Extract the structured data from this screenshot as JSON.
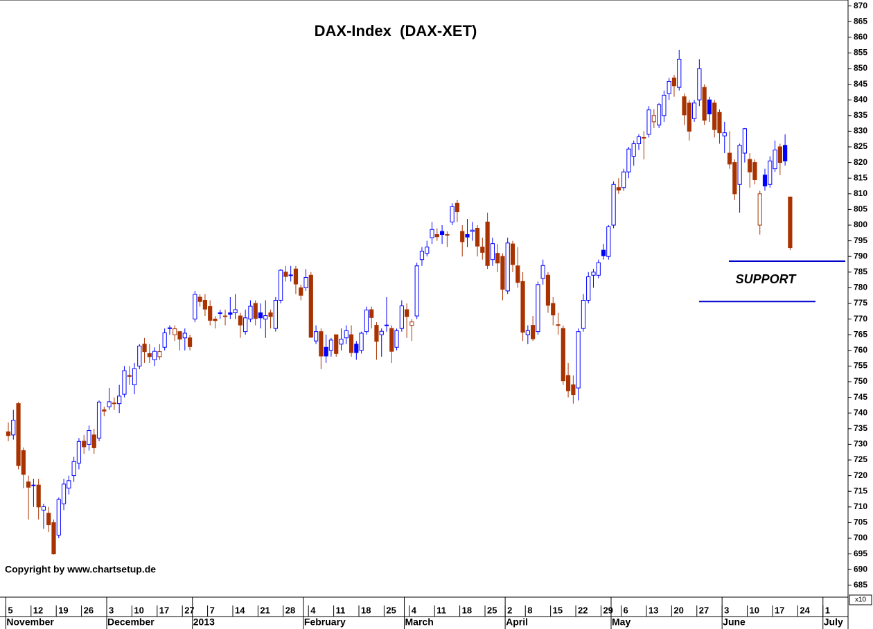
{
  "chart_data": {
    "type": "candlestick",
    "title": "DAX-Index  (DAX-XET)",
    "copyright": "Copyright by www.chartsetup.de",
    "up_color": "#0000ff",
    "down_color": "#a83200",
    "ylim": [
      681.2,
      871.9
    ],
    "yticks": [
      685,
      690,
      695,
      700,
      705,
      710,
      715,
      720,
      725,
      730,
      735,
      740,
      745,
      750,
      755,
      760,
      765,
      770,
      775,
      780,
      785,
      790,
      795,
      800,
      805,
      810,
      815,
      820,
      825,
      830,
      835,
      840,
      845,
      850,
      855,
      860,
      865,
      870
    ],
    "y_unit_label": "x10",
    "xticks": [
      {
        "value": 0,
        "label": "5"
      },
      {
        "value": 5,
        "label": "12"
      },
      {
        "value": 10,
        "label": "19"
      },
      {
        "value": 15,
        "label": "26"
      },
      {
        "value": 20,
        "label": "3"
      },
      {
        "value": 25,
        "label": "10"
      },
      {
        "value": 30,
        "label": "17"
      },
      {
        "value": 35,
        "label": "27"
      },
      {
        "value": 40,
        "label": "7"
      },
      {
        "value": 45,
        "label": "14"
      },
      {
        "value": 50,
        "label": "21"
      },
      {
        "value": 55,
        "label": "28"
      },
      {
        "value": 60,
        "label": "4"
      },
      {
        "value": 65,
        "label": "11"
      },
      {
        "value": 70,
        "label": "18"
      },
      {
        "value": 75,
        "label": "25"
      },
      {
        "value": 80,
        "label": "4"
      },
      {
        "value": 85,
        "label": "11"
      },
      {
        "value": 90,
        "label": "18"
      },
      {
        "value": 95,
        "label": "25"
      },
      {
        "value": 99,
        "label": "2"
      },
      {
        "value": 103,
        "label": "8"
      },
      {
        "value": 108,
        "label": "15"
      },
      {
        "value": 113,
        "label": "22"
      },
      {
        "value": 118,
        "label": "29"
      },
      {
        "value": 122,
        "label": "6"
      },
      {
        "value": 127,
        "label": "13"
      },
      {
        "value": 132,
        "label": "20"
      },
      {
        "value": 137,
        "label": "27"
      },
      {
        "value": 142,
        "label": "3"
      },
      {
        "value": 147,
        "label": "10"
      },
      {
        "value": 152,
        "label": "17"
      },
      {
        "value": 157,
        "label": "24"
      },
      {
        "value": 162,
        "label": "1"
      }
    ],
    "month_labels": [
      {
        "value": 0,
        "label": "November"
      },
      {
        "value": 20,
        "label": "December"
      },
      {
        "value": 37,
        "label": "2013"
      },
      {
        "value": 59,
        "label": "February"
      },
      {
        "value": 79,
        "label": "March"
      },
      {
        "value": 99,
        "label": "April"
      },
      {
        "value": 120,
        "label": "May"
      },
      {
        "value": 142,
        "label": "June"
      },
      {
        "value": 162,
        "label": "July"
      }
    ],
    "support_lines": [
      788.5,
      775.6
    ],
    "annotation": "SUPPORT",
    "ohlc": [
      [
        734,
        737,
        731,
        732.8
      ],
      [
        733,
        741,
        731.5,
        737.7
      ],
      [
        743,
        743.5,
        722,
        723.2
      ],
      [
        728,
        729,
        716,
        720.4
      ],
      [
        718,
        720,
        706,
        716.3
      ],
      [
        717,
        719,
        710,
        716.9
      ],
      [
        717,
        719,
        706,
        710
      ],
      [
        709,
        711,
        703,
        710.1
      ],
      [
        708,
        710,
        702,
        704.3
      ],
      [
        705,
        706,
        694.8,
        695
      ],
      [
        701,
        713,
        700,
        712.4
      ],
      [
        711,
        719,
        709,
        717.3
      ],
      [
        716,
        720,
        714,
        718.4
      ],
      [
        720,
        726,
        718,
        724.5
      ],
      [
        724,
        732,
        722,
        730.9
      ],
      [
        731,
        733,
        727,
        729.2
      ],
      [
        730,
        736,
        728,
        734.4
      ],
      [
        733,
        735,
        727,
        728.9
      ],
      [
        732,
        744,
        731,
        743.5
      ],
      [
        741,
        742,
        739,
        740.6
      ],
      [
        742,
        748,
        741,
        743.6
      ],
      [
        743,
        745,
        741,
        743.2
      ],
      [
        743,
        749,
        740,
        745.4
      ],
      [
        746,
        755,
        745,
        753.5
      ],
      [
        752,
        755,
        749,
        751.7
      ],
      [
        749,
        756,
        746,
        754.2
      ],
      [
        755,
        762,
        754,
        761.4
      ],
      [
        762,
        764,
        756,
        759.6
      ],
      [
        759,
        762,
        756,
        758
      ],
      [
        757,
        761,
        755,
        759.7
      ],
      [
        758,
        762,
        757,
        759.6
      ],
      [
        761,
        767,
        760,
        765.6
      ],
      [
        767,
        768,
        765,
        767.2
      ],
      [
        765,
        768,
        763,
        766.9
      ],
      [
        766,
        766,
        760,
        763.6
      ],
      [
        764,
        767,
        760,
        765.5
      ],
      [
        764,
        765,
        760,
        761.2
      ],
      [
        770,
        779,
        769,
        777.9
      ],
      [
        777,
        778,
        774,
        775.6
      ],
      [
        776,
        778,
        771,
        773.2
      ],
      [
        774,
        776,
        768,
        769.6
      ],
      [
        770,
        771,
        767,
        769.5
      ],
      [
        772,
        773,
        770,
        772
      ],
      [
        771,
        773,
        768,
        770.8
      ],
      [
        772,
        777,
        770,
        771.5
      ],
      [
        772,
        778,
        770,
        773
      ],
      [
        771,
        772,
        764,
        768.1
      ],
      [
        766,
        773,
        765,
        770.4
      ],
      [
        770,
        776,
        769,
        774.1
      ],
      [
        775,
        776,
        768,
        770.2
      ],
      [
        772,
        775,
        767,
        770.4
      ],
      [
        770,
        776,
        764,
        771.1
      ],
      [
        772,
        773,
        767,
        770.8
      ],
      [
        767,
        777,
        766,
        776
      ],
      [
        776,
        786,
        775,
        785.6
      ],
      [
        785,
        787,
        782,
        783.6
      ],
      [
        784,
        787,
        782,
        784.1
      ],
      [
        786,
        787,
        778,
        781.2
      ],
      [
        780,
        781,
        776,
        777.6
      ],
      [
        780,
        786,
        779,
        783.3
      ],
      [
        784,
        785,
        764,
        764.2
      ],
      [
        763,
        768,
        762,
        766
      ],
      [
        766,
        767,
        754,
        758.2
      ],
      [
        761,
        765,
        756,
        758.2
      ],
      [
        760,
        764,
        758,
        763.3
      ],
      [
        765,
        765,
        758,
        759
      ],
      [
        762,
        767,
        760,
        763.6
      ],
      [
        764,
        768,
        762,
        766.3
      ],
      [
        765,
        768,
        758,
        759.3
      ],
      [
        762,
        763,
        757,
        759.3
      ],
      [
        760,
        766,
        759,
        765.5
      ],
      [
        766,
        774,
        765,
        772.9
      ],
      [
        773,
        774,
        767,
        770.5
      ],
      [
        768,
        769,
        757,
        762.9
      ],
      [
        765,
        767,
        758,
        766.1
      ],
      [
        768,
        777,
        766,
        768.1
      ],
      [
        767,
        768,
        756,
        759.7
      ],
      [
        761,
        767,
        760,
        766.3
      ],
      [
        767,
        776,
        766,
        774.2
      ],
      [
        773,
        775,
        764,
        770.8
      ],
      [
        768,
        770,
        763,
        769.1
      ],
      [
        771,
        788,
        770,
        787
      ],
      [
        789,
        793,
        787,
        791.7
      ],
      [
        791,
        795,
        790,
        793
      ],
      [
        796,
        801,
        794,
        798.6
      ],
      [
        797,
        799,
        795,
        796.3
      ],
      [
        798,
        800,
        794,
        797
      ],
      [
        797,
        798,
        793,
        796.8
      ],
      [
        801,
        807,
        800,
        805.9
      ],
      [
        807,
        808,
        801,
        804.3
      ],
      [
        798,
        800,
        790,
        794.7
      ],
      [
        797,
        802,
        793,
        796.2
      ],
      [
        798,
        801,
        795,
        798.4
      ],
      [
        799,
        800,
        790,
        793.3
      ],
      [
        793,
        796,
        789,
        791.3
      ],
      [
        801,
        804,
        786,
        787.1
      ],
      [
        789,
        796,
        787,
        794.1
      ],
      [
        791,
        794,
        785,
        787.9
      ],
      [
        790,
        791,
        776,
        779.5
      ],
      [
        779,
        796,
        778,
        794.3
      ],
      [
        794,
        795,
        785,
        787.4
      ],
      [
        787,
        793,
        780,
        781.7
      ],
      [
        782,
        785,
        763,
        765.8
      ],
      [
        765,
        768,
        762,
        766.3
      ],
      [
        768,
        771,
        763,
        763.7
      ],
      [
        766,
        782,
        765,
        781
      ],
      [
        783,
        789,
        781,
        787.1
      ],
      [
        784,
        785,
        772,
        774.4
      ],
      [
        775,
        777,
        768,
        771.3
      ],
      [
        768,
        772,
        765,
        768.2
      ],
      [
        767,
        768,
        749,
        750.3
      ],
      [
        752,
        756,
        745,
        747.1
      ],
      [
        749,
        752,
        743,
        745.9
      ],
      [
        748,
        767,
        744,
        766
      ],
      [
        767,
        778,
        766,
        776
      ],
      [
        776,
        785,
        775,
        783.5
      ],
      [
        784,
        786,
        780,
        785
      ],
      [
        784,
        789,
        783,
        788
      ],
      [
        792,
        794,
        789,
        790.2
      ],
      [
        790,
        800,
        789,
        799.5
      ],
      [
        800,
        814,
        799,
        813
      ],
      [
        812,
        815,
        810,
        811.2
      ],
      [
        812,
        818,
        811,
        817
      ],
      [
        817,
        825,
        815,
        824.3
      ],
      [
        822,
        827,
        819,
        826
      ],
      [
        826,
        829,
        824,
        828.2
      ],
      [
        828,
        830,
        821,
        828
      ],
      [
        829,
        838,
        828,
        836.8
      ],
      [
        833,
        837,
        831,
        835
      ],
      [
        832,
        839,
        831,
        838.5
      ],
      [
        835,
        843,
        833,
        841.5
      ],
      [
        842,
        847,
        840,
        845.9
      ],
      [
        847,
        848,
        841,
        844.5
      ],
      [
        844,
        856,
        843,
        853
      ],
      [
        841,
        842,
        832,
        835.2
      ],
      [
        839,
        840,
        827,
        830
      ],
      [
        834,
        840,
        833,
        839
      ],
      [
        840,
        853,
        838,
        850
      ],
      [
        844,
        845,
        832,
        833.5
      ],
      [
        840,
        841,
        833,
        835.5
      ],
      [
        839,
        840,
        828,
        830.5
      ],
      [
        836,
        837,
        826,
        829.5
      ],
      [
        828.5,
        833,
        823,
        829.5
      ],
      [
        823,
        830,
        818,
        819.5
      ],
      [
        820,
        821,
        808,
        810
      ],
      [
        813,
        826,
        804,
        825.5
      ],
      [
        823,
        831,
        820,
        830.8
      ],
      [
        821,
        823,
        812,
        817
      ],
      [
        820,
        821,
        813,
        814.5
      ],
      [
        800,
        811,
        797,
        810
      ],
      [
        816,
        818,
        811,
        812.5
      ],
      [
        813,
        822,
        812,
        820.5
      ],
      [
        818,
        827,
        817,
        824
      ],
      [
        825,
        826,
        816,
        820
      ],
      [
        825.5,
        829,
        819,
        820.5
      ],
      [
        809,
        809,
        792,
        792.8
      ]
    ]
  }
}
